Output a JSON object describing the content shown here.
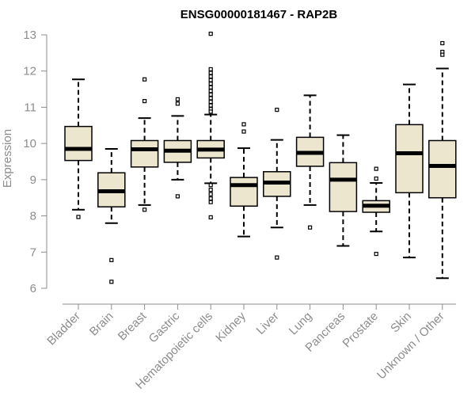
{
  "chart_data": {
    "type": "boxplot",
    "title": "ENSG00000181467 - RAP2B",
    "xlabel": "",
    "ylabel": "Expression",
    "ylim": [
      6,
      13
    ],
    "yticks": [
      6,
      7,
      8,
      9,
      10,
      11,
      12,
      13
    ],
    "grid": false,
    "colors": {
      "box_fill": "#ede6cf",
      "stroke": "#000000",
      "axis": "#8c8c8c"
    },
    "categories": [
      "Bladder",
      "Brain",
      "Breast",
      "Gastric",
      "Hematopoietic cells",
      "Kidney",
      "Liver",
      "Lung",
      "Pancreas",
      "Prostate",
      "Skin",
      "Unknown / Other"
    ],
    "boxes": [
      {
        "q1": 9.53,
        "median": 9.85,
        "q3": 10.47,
        "whisker_low": 8.17,
        "whisker_high": 11.77,
        "outliers": [
          7.97
        ]
      },
      {
        "q1": 8.25,
        "median": 8.68,
        "q3": 9.19,
        "whisker_low": 7.8,
        "whisker_high": 9.85,
        "outliers": [
          6.78,
          6.18
        ]
      },
      {
        "q1": 9.35,
        "median": 9.84,
        "q3": 10.08,
        "whisker_low": 8.3,
        "whisker_high": 10.7,
        "outliers": [
          11.77,
          11.17,
          8.17
        ]
      },
      {
        "q1": 9.48,
        "median": 9.8,
        "q3": 10.08,
        "whisker_low": 9.0,
        "whisker_high": 10.76,
        "outliers": [
          11.22,
          11.1,
          8.54
        ]
      },
      {
        "q1": 9.6,
        "median": 9.83,
        "q3": 10.08,
        "whisker_low": 8.9,
        "whisker_high": 10.8,
        "outliers": [
          13.03,
          12.05,
          11.95,
          11.85,
          11.75,
          11.65,
          11.55,
          11.45,
          11.35,
          11.25,
          11.15,
          11.05,
          10.95,
          10.88,
          8.85,
          8.72,
          8.6,
          8.48,
          8.38,
          7.96
        ]
      },
      {
        "q1": 8.27,
        "median": 8.85,
        "q3": 9.06,
        "whisker_low": 7.43,
        "whisker_high": 9.87,
        "outliers": [
          10.53,
          10.33
        ]
      },
      {
        "q1": 8.54,
        "median": 8.92,
        "q3": 9.22,
        "whisker_low": 7.68,
        "whisker_high": 10.1,
        "outliers": [
          10.93,
          6.85
        ]
      },
      {
        "q1": 9.37,
        "median": 9.74,
        "q3": 10.17,
        "whisker_low": 8.3,
        "whisker_high": 11.33,
        "outliers": [
          7.68
        ]
      },
      {
        "q1": 8.12,
        "median": 9.0,
        "q3": 9.47,
        "whisker_low": 7.17,
        "whisker_high": 10.23,
        "outliers": []
      },
      {
        "q1": 8.1,
        "median": 8.28,
        "q3": 8.42,
        "whisker_low": 7.57,
        "whisker_high": 8.91,
        "outliers": [
          9.3,
          9.03,
          6.95
        ]
      },
      {
        "q1": 8.64,
        "median": 9.73,
        "q3": 10.52,
        "whisker_low": 6.85,
        "whisker_high": 11.63,
        "outliers": []
      },
      {
        "q1": 8.5,
        "median": 9.38,
        "q3": 10.08,
        "whisker_low": 6.28,
        "whisker_high": 12.07,
        "outliers": [
          12.77,
          12.53,
          12.45
        ]
      }
    ]
  }
}
